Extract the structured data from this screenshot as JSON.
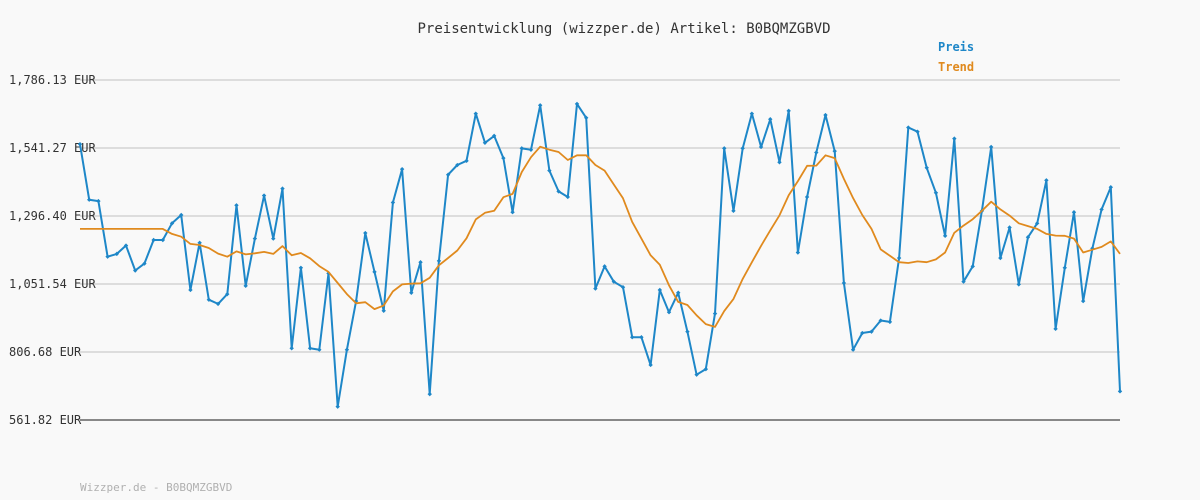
{
  "chart_data": {
    "type": "line",
    "title": "Preisentwicklung (wizzper.de) Artikel: B0BQMZGBVD",
    "footer": "Wizzper.de - B0BQMZGBVD",
    "ylim": [
      561.82,
      1786.13
    ],
    "yticks": [
      "1,786.13 EUR",
      "1,541.27 EUR",
      "1,296.40 EUR",
      "1,051.54 EUR",
      "806.68 EUR",
      "561.82 EUR"
    ],
    "ytick_values": [
      1786.13,
      1541.27,
      1296.4,
      1051.54,
      806.68,
      561.82
    ],
    "grid": true,
    "legend_placement": "top-right",
    "series": [
      {
        "name": "Preis",
        "color": "#1e87c8",
        "marker": "diamond",
        "values": [
          1555,
          1355,
          1350,
          1150,
          1160,
          1190,
          1100,
          1125,
          1210,
          1210,
          1270,
          1300,
          1030,
          1200,
          995,
          980,
          1015,
          1335,
          1045,
          1215,
          1370,
          1215,
          1395,
          820,
          1110,
          820,
          815,
          1090,
          610,
          815,
          990,
          1235,
          1095,
          955,
          1345,
          1465,
          1020,
          1130,
          655,
          1135,
          1445,
          1480,
          1495,
          1665,
          1560,
          1585,
          1505,
          1310,
          1540,
          1535,
          1695,
          1460,
          1385,
          1365,
          1700,
          1650,
          1035,
          1115,
          1060,
          1040,
          860,
          860,
          760,
          1030,
          950,
          1020,
          880,
          725,
          745,
          945,
          1540,
          1315,
          1540,
          1665,
          1545,
          1645,
          1490,
          1675,
          1165,
          1365,
          1525,
          1660,
          1530,
          1055,
          815,
          875,
          880,
          920,
          915,
          1145,
          1615,
          1600,
          1470,
          1380,
          1225,
          1575,
          1060,
          1115,
          1315,
          1545,
          1145,
          1255,
          1050,
          1220,
          1270,
          1425,
          890,
          1110,
          1310,
          990,
          1180,
          1320,
          1400,
          665
        ]
      },
      {
        "name": "Trend",
        "color": "#e08a1e",
        "values": [
          1250,
          1250,
          1250,
          1250,
          1250,
          1250,
          1250,
          1250,
          1250,
          1250,
          1232,
          1222,
          1196,
          1192,
          1181,
          1161,
          1150,
          1169,
          1158,
          1162,
          1167,
          1160,
          1188,
          1155,
          1163,
          1144,
          1116,
          1095,
          1055,
          1015,
          982,
          986,
          961,
          974,
          1025,
          1050,
          1053,
          1054,
          1074,
          1119,
          1145,
          1172,
          1216,
          1284,
          1308,
          1315,
          1364,
          1376,
          1455,
          1508,
          1546,
          1535,
          1527,
          1498,
          1515,
          1515,
          1480,
          1460,
          1410,
          1360,
          1275,
          1215,
          1155,
          1121,
          1047,
          987,
          976,
          939,
          907,
          897,
          954,
          998,
          1070,
          1130,
          1189,
          1245,
          1299,
          1371,
          1422,
          1477,
          1478,
          1515,
          1505,
          1430,
          1361,
          1300,
          1250,
          1176,
          1153,
          1130,
          1127,
          1133,
          1130,
          1140,
          1165,
          1236,
          1262,
          1285,
          1315,
          1348,
          1320,
          1298,
          1270,
          1260,
          1250,
          1232,
          1226,
          1225,
          1215,
          1165,
          1175,
          1185,
          1205,
          1160
        ]
      }
    ]
  }
}
